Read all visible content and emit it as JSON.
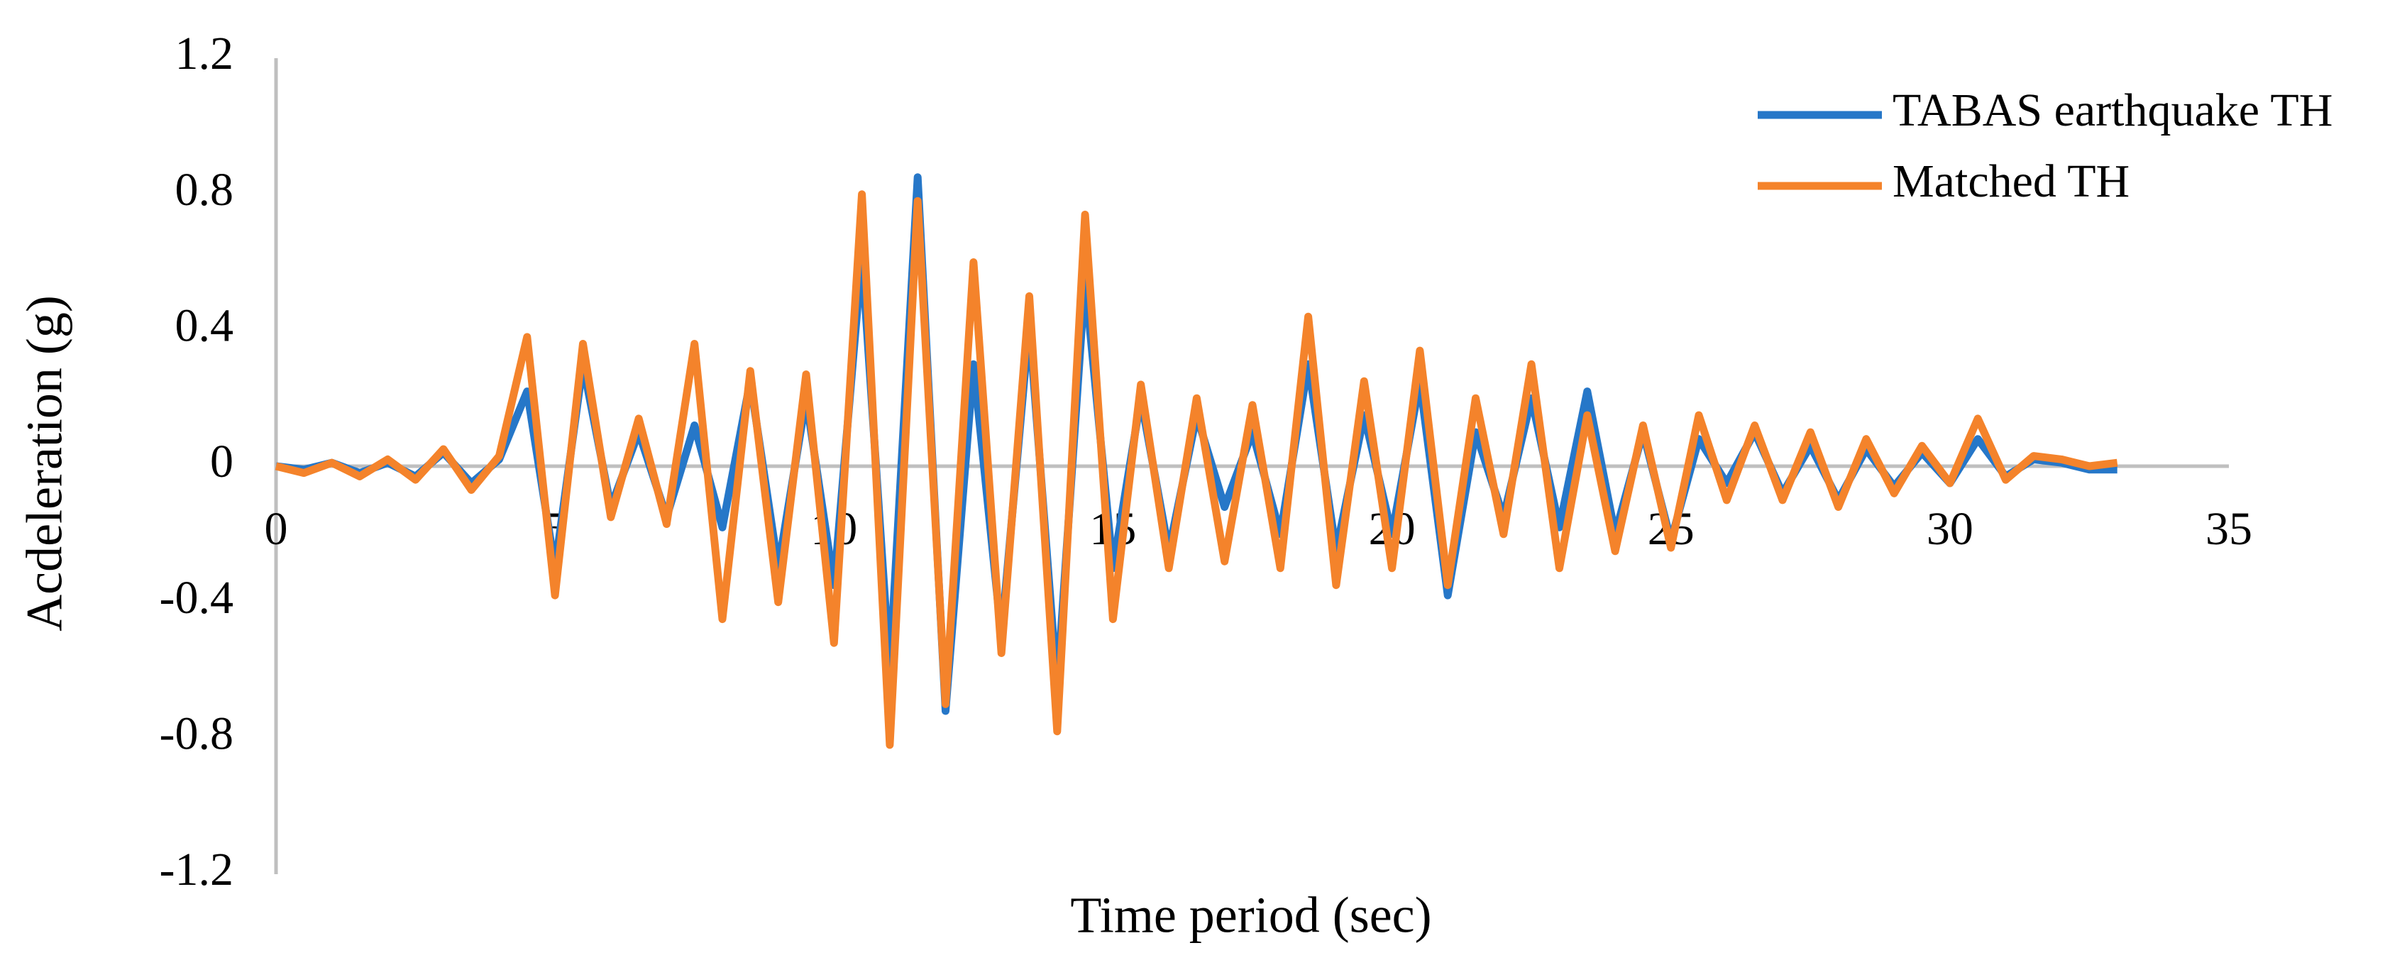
{
  "chart_data": {
    "type": "line",
    "xlabel": "Time period (sec)",
    "ylabel": "Acdeleration (g)",
    "x": [
      0,
      0.5,
      1,
      1.5,
      2,
      2.5,
      3,
      3.5,
      4,
      4.5,
      5,
      5.5,
      6,
      6.5,
      7,
      7.5,
      8,
      8.5,
      9,
      9.5,
      10,
      10.5,
      11,
      11.5,
      12,
      12.5,
      13,
      13.5,
      14,
      14.5,
      15,
      15.5,
      16,
      16.5,
      17,
      17.5,
      18,
      18.5,
      19,
      19.5,
      20,
      20.5,
      21,
      21.5,
      22,
      22.5,
      23,
      23.5,
      24,
      24.5,
      25,
      25.5,
      26,
      26.5,
      27,
      27.5,
      28,
      28.5,
      29,
      29.5,
      30,
      30.5,
      31,
      31.5,
      32,
      32.5,
      33
    ],
    "series": [
      {
        "name": "TABAS earthquake TH",
        "color": "#2677c8",
        "values": [
          0,
          -0.01,
          0.01,
          -0.02,
          0.01,
          -0.03,
          0.04,
          -0.05,
          0.02,
          0.22,
          -0.3,
          0.3,
          -0.12,
          0.1,
          -0.15,
          0.12,
          -0.18,
          0.25,
          -0.3,
          0.2,
          -0.35,
          0.62,
          -0.6,
          0.85,
          -0.72,
          0.3,
          -0.5,
          0.42,
          -0.65,
          0.55,
          -0.3,
          0.2,
          -0.25,
          0.15,
          -0.12,
          0.1,
          -0.2,
          0.3,
          -0.25,
          0.15,
          -0.2,
          0.25,
          -0.38,
          0.1,
          -0.15,
          0.2,
          -0.18,
          0.22,
          -0.2,
          0.1,
          -0.22,
          0.08,
          -0.05,
          0.1,
          -0.08,
          0.06,
          -0.1,
          0.05,
          -0.06,
          0.04,
          -0.05,
          0.08,
          -0.03,
          0.02,
          0.01,
          -0.01,
          -0.01
        ]
      },
      {
        "name": "Matched TH",
        "color": "#f4832b",
        "values": [
          0,
          -0.02,
          0.01,
          -0.03,
          0.02,
          -0.04,
          0.05,
          -0.07,
          0.03,
          0.38,
          -0.38,
          0.36,
          -0.15,
          0.14,
          -0.17,
          0.36,
          -0.45,
          0.28,
          -0.4,
          0.27,
          -0.52,
          0.8,
          -0.82,
          0.78,
          -0.7,
          0.6,
          -0.55,
          0.5,
          -0.78,
          0.74,
          -0.45,
          0.24,
          -0.3,
          0.2,
          -0.28,
          0.18,
          -0.3,
          0.44,
          -0.35,
          0.25,
          -0.3,
          0.34,
          -0.35,
          0.2,
          -0.2,
          0.3,
          -0.3,
          0.15,
          -0.25,
          0.12,
          -0.24,
          0.15,
          -0.1,
          0.12,
          -0.1,
          0.1,
          -0.12,
          0.08,
          -0.08,
          0.06,
          -0.05,
          0.14,
          -0.04,
          0.03,
          0.02,
          0,
          0.01
        ]
      }
    ],
    "xlim": [
      0,
      35
    ],
    "xticks": [
      0,
      5,
      10,
      15,
      20,
      25,
      30,
      35
    ],
    "ylim": [
      -1.2,
      1.2
    ],
    "yticks": [
      -1.2,
      -0.8,
      -0.4,
      0,
      0.4,
      0.8,
      1.2
    ],
    "legend": "upper right"
  }
}
